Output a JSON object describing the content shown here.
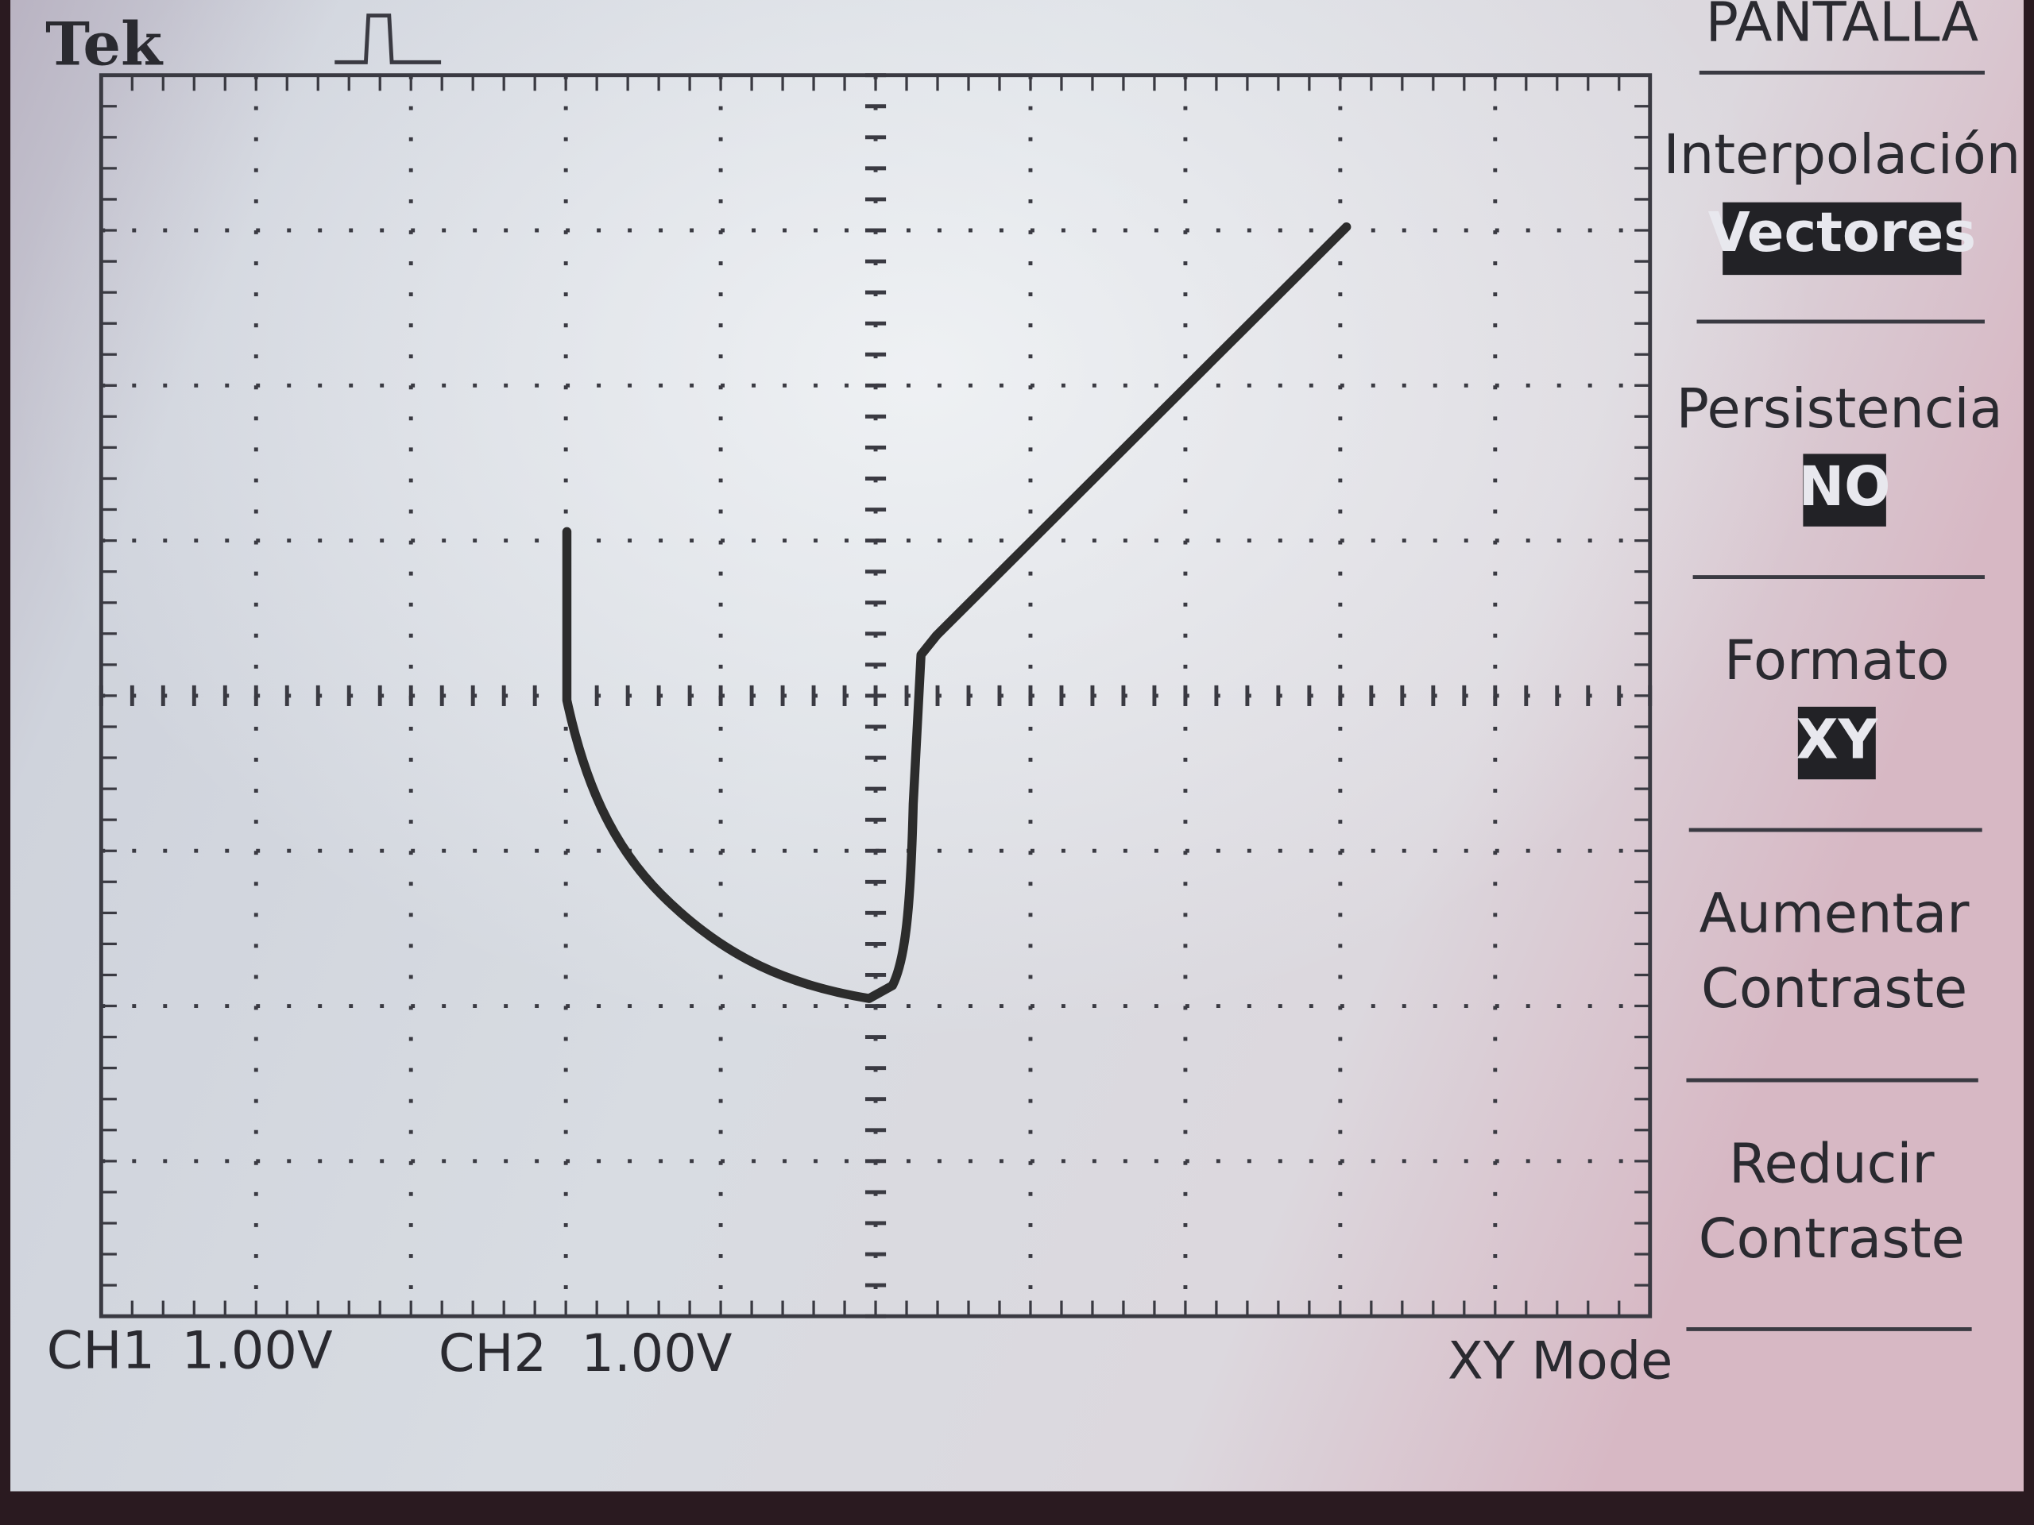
{
  "header": {
    "brand": "Tek"
  },
  "menu": {
    "title": "PANTALLA",
    "items": [
      {
        "label": "Interpolación",
        "value": "Vectores"
      },
      {
        "label": "Persistencia",
        "value": "NO"
      },
      {
        "label": "Formato",
        "value": "XY"
      },
      {
        "label_lines": [
          "Aumentar",
          "Contraste"
        ]
      },
      {
        "label_lines": [
          "Reducir",
          "Contraste"
        ]
      }
    ]
  },
  "status": {
    "ch1": {
      "name": "CH1",
      "scale": "1.00V"
    },
    "ch2": {
      "name": "CH2",
      "scale": "1.00V"
    },
    "mode": "XY Mode"
  }
}
